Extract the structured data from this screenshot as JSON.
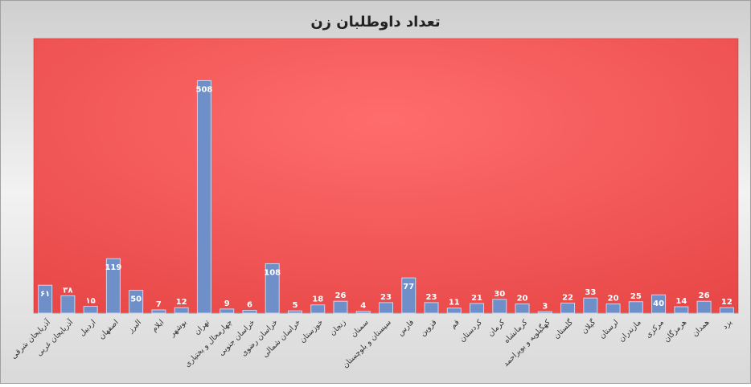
{
  "chart_data": {
    "type": "bar",
    "title": "تعداد داوطلبان زن",
    "categories": [
      "آذربایجان شرقی",
      "آذربایجان غربی",
      "اردبیل",
      "اصفهان",
      "البرز",
      "ایلام",
      "بوشهر",
      "تهران",
      "چهارمحال و بختیاری",
      "خراسان جنوبی",
      "خراسان رضوی",
      "خراسان شمالی",
      "خوزستان",
      "زنجان",
      "سمنان",
      "سیستان و بلوچستان",
      "فارس",
      "قزوین",
      "قم",
      "کردستان",
      "کرمان",
      "کرمانشاه",
      "کهگیلویه و بویراحمد",
      "گلستان",
      "گیلان",
      "لرستان",
      "مازندران",
      "مرکزی",
      "هرمزگان",
      "همدان",
      "یزد"
    ],
    "values": [
      61,
      38,
      15,
      119,
      50,
      7,
      12,
      508,
      9,
      6,
      108,
      5,
      18,
      26,
      4,
      23,
      77,
      23,
      11,
      21,
      30,
      20,
      3,
      22,
      33,
      20,
      25,
      40,
      14,
      26,
      12
    ],
    "value_labels": [
      "۶۱",
      "۳۸",
      "۱۵",
      "119",
      "50",
      "7",
      "12",
      "508",
      "9",
      "6",
      "108",
      "5",
      "18",
      "26",
      "4",
      "23",
      "77",
      "23",
      "11",
      "21",
      "30",
      "20",
      "3",
      "22",
      "33",
      "20",
      "25",
      "40",
      "14",
      "26",
      "12"
    ],
    "color": "#6f8fc9",
    "ylim": [
      0,
      600
    ]
  }
}
